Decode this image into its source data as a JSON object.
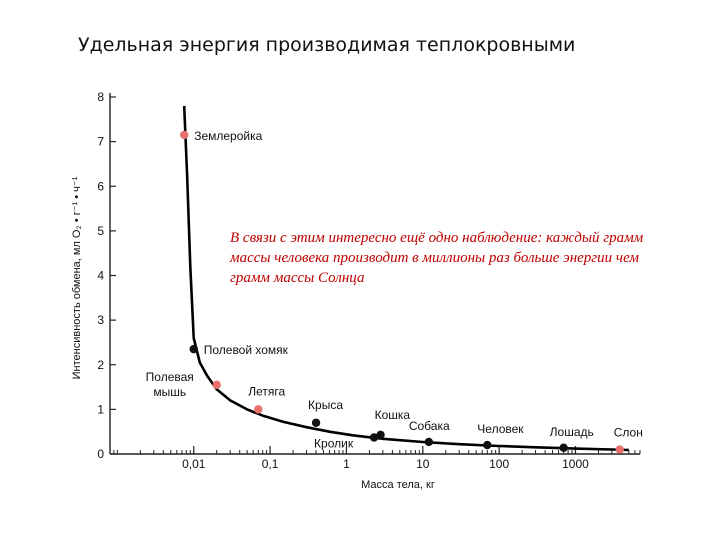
{
  "slide": {
    "title": "Удельная энергия производимая теплокровными",
    "annotation": "В связи с этим интересно ещё одно наблюдение: каждый грамм массы человека производит в миллионы раз больше энергии чем грамм массы Солнца",
    "annotation_color": "#c00000"
  },
  "chart_data": {
    "type": "line",
    "title": "",
    "xlabel": "Масса тела, кг",
    "ylabel": "Интенсивность обмена, мл O₂ • г⁻¹ • ч⁻¹",
    "x_scale": "log",
    "xlim": [
      0.0008,
      7000
    ],
    "ylim": [
      0,
      8
    ],
    "x_ticks": [
      0.01,
      0.1,
      1,
      10,
      100,
      1000
    ],
    "x_tick_labels": [
      "0,01",
      "0,1",
      "1",
      "10",
      "100",
      "1000"
    ],
    "y_ticks": [
      0,
      1,
      2,
      3,
      4,
      5,
      6,
      7,
      8
    ],
    "y_tick_labels": [
      "0",
      "1",
      "2",
      "3",
      "4",
      "5",
      "6",
      "7",
      "8"
    ],
    "grid": false,
    "curve_color": "#000000",
    "colors": {
      "highlight": "#e8706a",
      "regular": "#111111"
    },
    "curve": {
      "x": [
        0.0075,
        0.0082,
        0.009,
        0.01,
        0.012,
        0.015,
        0.02,
        0.03,
        0.05,
        0.08,
        0.15,
        0.3,
        0.6,
        1.2,
        3,
        10,
        30,
        100,
        300,
        1000,
        3000,
        5000
      ],
      "y": [
        7.8,
        6.2,
        4.2,
        2.6,
        2.05,
        1.75,
        1.45,
        1.2,
        1.0,
        0.86,
        0.72,
        0.6,
        0.5,
        0.42,
        0.34,
        0.27,
        0.22,
        0.18,
        0.15,
        0.12,
        0.1,
        0.09
      ]
    },
    "points": [
      {
        "name": "Землеройка",
        "x": 0.0075,
        "y": 7.15,
        "highlight": true
      },
      {
        "name": "Полевой хомяк",
        "x": 0.01,
        "y": 2.35,
        "highlight": false
      },
      {
        "name": "Полевая мышь",
        "x": 0.02,
        "y": 1.55,
        "highlight": true
      },
      {
        "name": "Летяга",
        "x": 0.07,
        "y": 1.0,
        "highlight": true
      },
      {
        "name": "Крыса",
        "x": 0.4,
        "y": 0.7,
        "highlight": false
      },
      {
        "name": "Кролик",
        "x": 2.3,
        "y": 0.37,
        "highlight": false
      },
      {
        "name": "Кошка",
        "x": 2.8,
        "y": 0.43,
        "highlight": false
      },
      {
        "name": "Собака",
        "x": 12,
        "y": 0.27,
        "highlight": false
      },
      {
        "name": "Человек",
        "x": 70,
        "y": 0.2,
        "highlight": false
      },
      {
        "name": "Лошадь",
        "x": 700,
        "y": 0.14,
        "highlight": false
      },
      {
        "name": "Слон",
        "x": 3800,
        "y": 0.1,
        "highlight": true
      }
    ]
  }
}
